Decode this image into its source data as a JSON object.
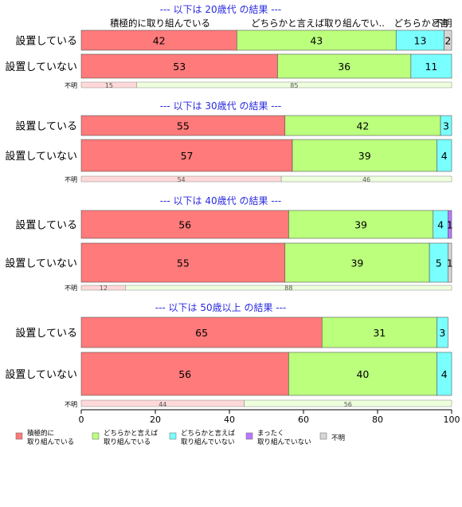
{
  "chart_data": {
    "type": "bar",
    "orientation": "horizontal",
    "stacked": true,
    "xlim": [
      0,
      100
    ],
    "x_ticks": [
      0,
      20,
      40,
      60,
      80,
      100
    ],
    "category_header_labels": [
      "積極的に取り組んでいる",
      "どちらかと言えば取り組んでい..",
      "どちらかと言",
      "不明"
    ],
    "groups": [
      {
        "title": "--- 以下は 20歳代 の結果 ---",
        "rows": [
          {
            "label": "設置している",
            "values": [
              42,
              43,
              13,
              0,
              2
            ]
          },
          {
            "label": "設置していない",
            "values": [
              53,
              36,
              11,
              0,
              0
            ]
          }
        ],
        "unknown": {
          "label": "不明",
          "values": [
            15,
            85
          ]
        }
      },
      {
        "title": "--- 以下は 30歳代 の結果 ---",
        "rows": [
          {
            "label": "設置している",
            "values": [
              55,
              42,
              3,
              0,
              0
            ]
          },
          {
            "label": "設置していない",
            "values": [
              57,
              39,
              4,
              0,
              0
            ]
          }
        ],
        "unknown": {
          "label": "不明",
          "values": [
            54,
            46
          ]
        }
      },
      {
        "title": "--- 以下は 40歳代 の結果 ---",
        "rows": [
          {
            "label": "設置している",
            "values": [
              56,
              39,
              4,
              1,
              0
            ]
          },
          {
            "label": "設置していない",
            "values": [
              55,
              39,
              5,
              0,
              1
            ]
          }
        ],
        "unknown": {
          "label": "不明",
          "values": [
            12,
            88
          ]
        }
      },
      {
        "title": "--- 以下は 50歳以上 の結果 ---",
        "rows": [
          {
            "label": "設置している",
            "values": [
              65,
              31,
              3,
              0,
              0
            ]
          },
          {
            "label": "設置していない",
            "values": [
              56,
              40,
              4,
              0,
              0
            ]
          }
        ],
        "unknown": {
          "label": "不明",
          "values": [
            44,
            56
          ]
        }
      }
    ],
    "series": [
      {
        "name": "積極的に\n取り組んでいる",
        "color": "#ff7a7a"
      },
      {
        "name": "どちらかと言えば\n取り組んでいる",
        "color": "#bbff7d"
      },
      {
        "name": "どちらかと言えば\n取り組んでいない",
        "color": "#7affff"
      },
      {
        "name": "まったく\n取り組んでいない",
        "color": "#b67aff"
      },
      {
        "name": "不明",
        "color": "#d6d6d6"
      }
    ],
    "unknown_colors": [
      "#ffd9d9",
      "#eeffdd"
    ],
    "title_color": "#2a2ae0"
  }
}
